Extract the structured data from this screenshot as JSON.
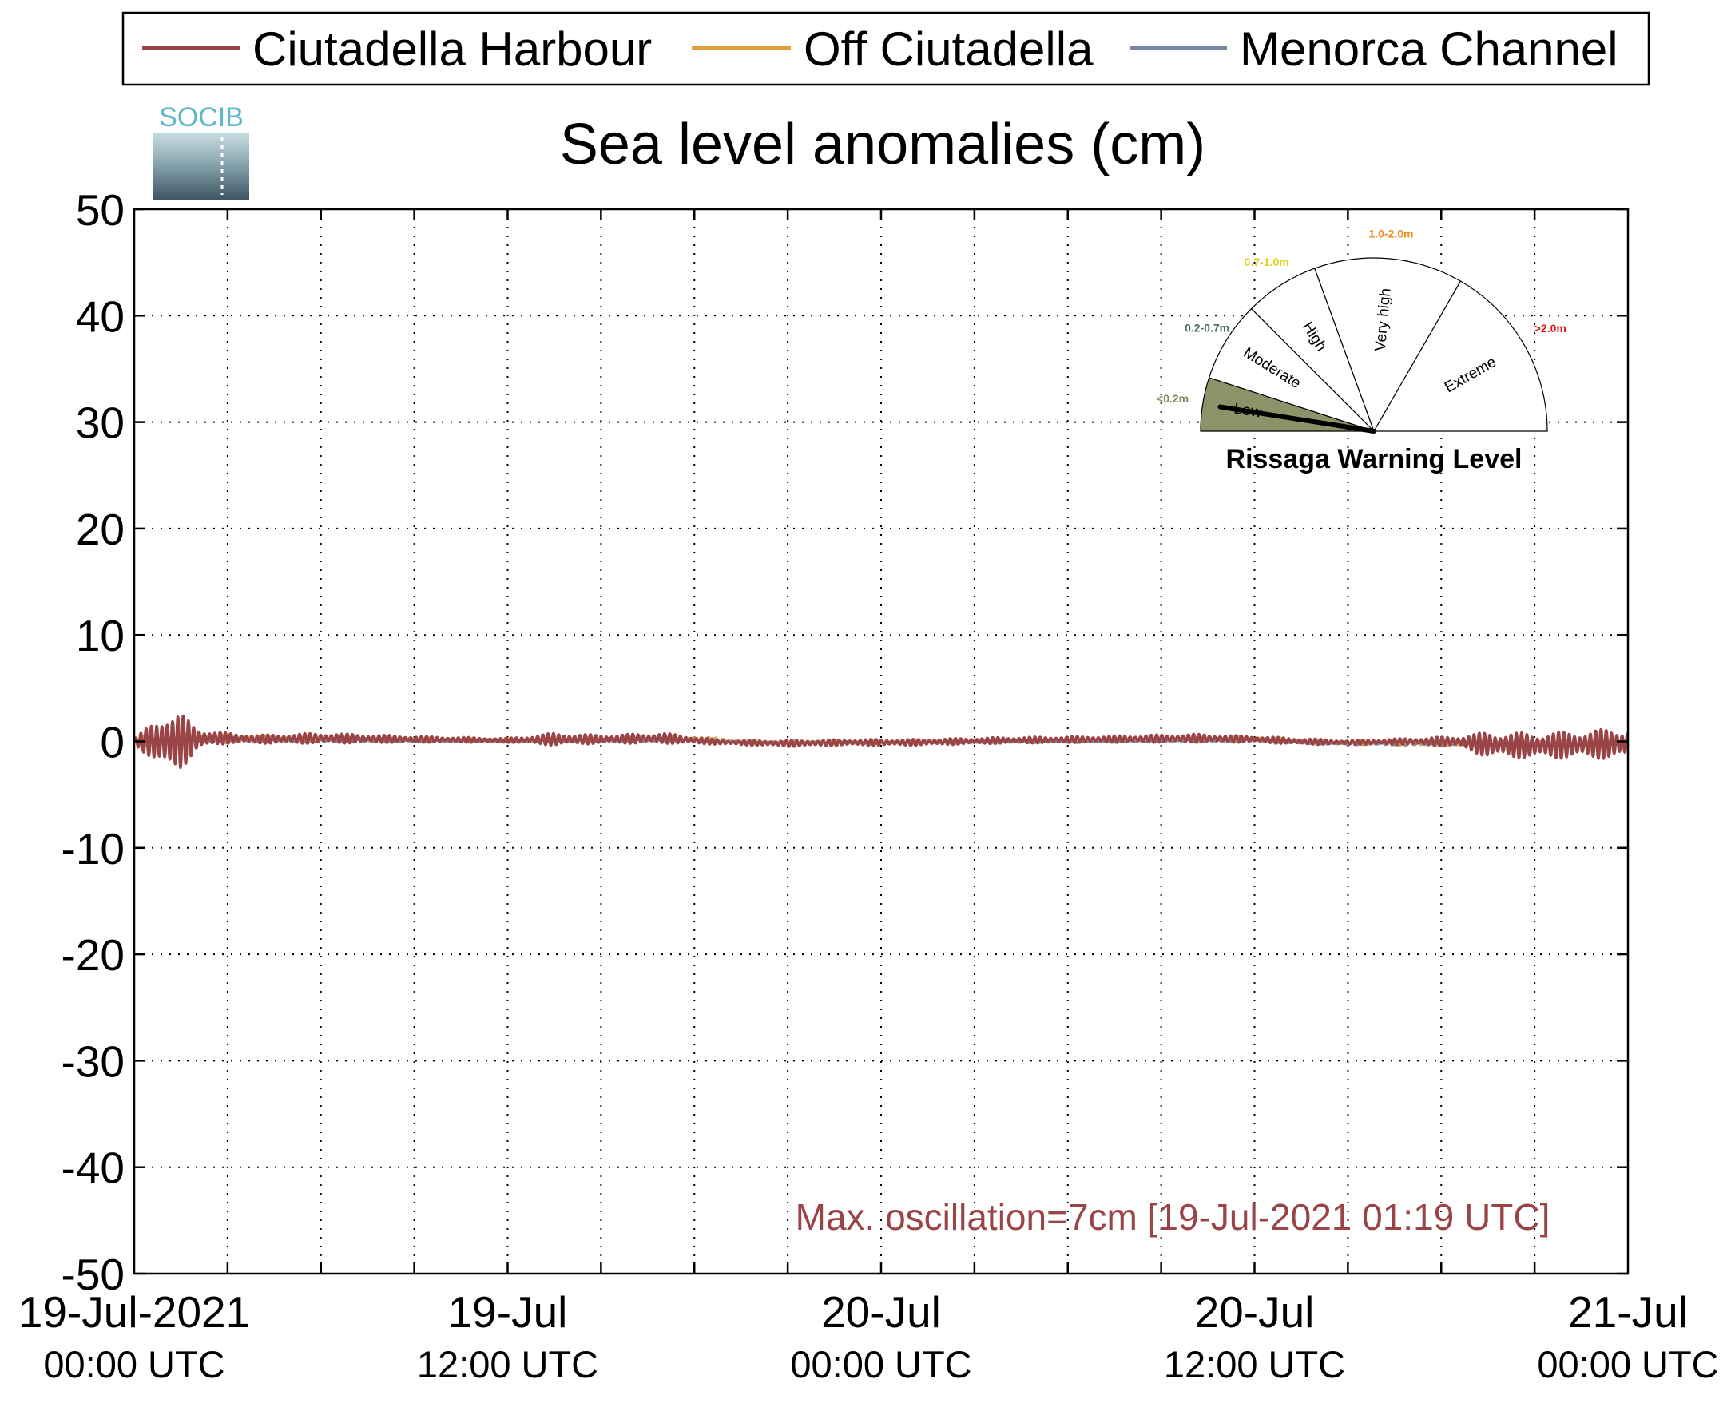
{
  "legend": [
    {
      "name": "Ciutadella Harbour",
      "color": "#9a4448"
    },
    {
      "name": "Off Ciutadella",
      "color": "#e0a03a"
    },
    {
      "name": "Menorca Channel",
      "color": "#7a86a8"
    }
  ],
  "logo": {
    "text": "SOCIB"
  },
  "chart_data": {
    "type": "line",
    "title": "Sea level anomalies (cm)",
    "xlabel": "",
    "ylabel": "",
    "ylim": [
      -50,
      50
    ],
    "yticks": [
      50,
      40,
      30,
      20,
      10,
      0,
      -10,
      -20,
      -30,
      -40,
      -50
    ],
    "xlim_hours": [
      0,
      48
    ],
    "xtick_labels": [
      {
        "hours": 0,
        "line1": "19-Jul-2021",
        "line2": "00:00 UTC"
      },
      {
        "hours": 12,
        "line1": "19-Jul",
        "line2": "12:00 UTC"
      },
      {
        "hours": 24,
        "line1": "20-Jul",
        "line2": "00:00 UTC"
      },
      {
        "hours": 36,
        "line1": "20-Jul",
        "line2": "12:00 UTC"
      },
      {
        "hours": 48,
        "line1": "21-Jul",
        "line2": "00:00 UTC"
      }
    ],
    "grid": true,
    "annotation": "Max. oscillation=7cm [19-Jul-2021 01:19 UTC]",
    "annotation_color": "#9a4448",
    "series": [
      {
        "name": "Ciutadella Harbour",
        "color": "#9a4448",
        "envelope_hours": [
          0,
          0.5,
          1.0,
          1.5,
          2.0,
          2.5,
          3.0,
          4.0,
          6.0,
          9.0,
          12.0,
          13.5,
          15.0,
          17.0,
          19.0,
          21.0,
          23.0,
          25.0,
          28.0,
          31.0,
          34.0,
          36.0,
          37.5,
          39.0,
          41.0,
          42.5,
          43.5,
          45.0,
          46.5,
          48.0
        ],
        "envelope_amplitude": [
          0.3,
          1.5,
          3.0,
          2.6,
          1.2,
          0.7,
          0.5,
          0.4,
          0.5,
          0.3,
          0.2,
          0.6,
          0.4,
          0.5,
          0.2,
          0.3,
          0.3,
          0.3,
          0.3,
          0.3,
          0.4,
          0.3,
          0.3,
          0.2,
          0.3,
          0.5,
          1.2,
          1.2,
          1.3,
          1.5
        ],
        "envelope_offset": [
          0.0,
          0.0,
          0.0,
          0.0,
          0.2,
          0.3,
          0.3,
          0.2,
          0.3,
          0.2,
          0.1,
          0.2,
          0.2,
          0.3,
          -0.1,
          -0.2,
          -0.1,
          -0.1,
          0.1,
          0.2,
          0.3,
          0.2,
          0.0,
          -0.1,
          0.0,
          0.0,
          -0.3,
          -0.4,
          -0.3,
          -0.2
        ]
      },
      {
        "name": "Off Ciutadella",
        "color": "#e0a03a",
        "envelope_hours": [
          0,
          2,
          5,
          12,
          18,
          20,
          24,
          32,
          36,
          38,
          42,
          48
        ],
        "envelope_amplitude": [
          0.4,
          0.5,
          0.3,
          0.2,
          0.3,
          0.2,
          0.2,
          0.2,
          0.3,
          0.2,
          0.3,
          0.4
        ],
        "envelope_offset": [
          0.0,
          0.3,
          0.2,
          0.1,
          0.2,
          -0.1,
          -0.1,
          0.1,
          0.2,
          -0.1,
          -0.2,
          -0.2
        ]
      },
      {
        "name": "Menorca Channel",
        "color": "#7a86a8",
        "envelope_hours": [
          0,
          2,
          5,
          12,
          18,
          20,
          24,
          32,
          36,
          38,
          42,
          48
        ],
        "envelope_amplitude": [
          0.2,
          0.3,
          0.2,
          0.1,
          0.1,
          0.1,
          0.1,
          0.1,
          0.1,
          0.1,
          0.2,
          0.2
        ],
        "envelope_offset": [
          0.0,
          0.2,
          0.1,
          0.0,
          0.1,
          -0.1,
          -0.1,
          0.0,
          0.1,
          -0.2,
          -0.2,
          -0.2
        ]
      }
    ]
  },
  "gauge": {
    "title": "Rissaga Warning Level",
    "needle_level": "Low",
    "sectors": [
      {
        "label": "Low",
        "range": "<0.2m",
        "range_color": "#7c8a5a",
        "fill": "#8a9468"
      },
      {
        "label": "Moderate",
        "range": "0.2-0.7m",
        "range_color": "#4a6a6a",
        "fill": "#ffffff"
      },
      {
        "label": "High",
        "range": "0.7-1.0m",
        "range_color": "#e6d01a",
        "fill": "#ffffff"
      },
      {
        "label": "Very high",
        "range": "1.0-2.0m",
        "range_color": "#f08a1a",
        "fill": "#ffffff"
      },
      {
        "label": "Extreme",
        "range": ">2.0m",
        "range_color": "#e01a1a",
        "fill": "#ffffff"
      }
    ]
  }
}
